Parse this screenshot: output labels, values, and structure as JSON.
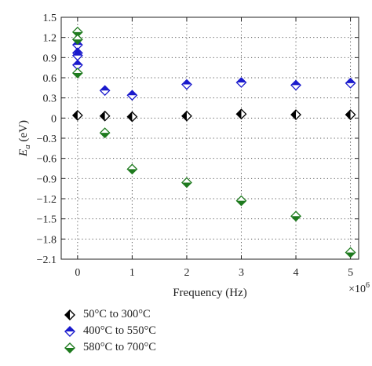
{
  "chart_data": {
    "type": "scatter",
    "title": "",
    "xlabel": "Frequency (Hz)",
    "ylabel_main": "E",
    "ylabel_sub": "a",
    "ylabel_unit": " (eV)",
    "x_multiplier_label": "×10",
    "x_multiplier_exp": "6",
    "xlim": [
      -0.3,
      5.15
    ],
    "ylim": [
      -2.1,
      1.5
    ],
    "x_ticks": [
      0,
      1,
      2,
      3,
      4,
      5
    ],
    "x_tick_labels": [
      "0",
      "1",
      "2",
      "3",
      "4",
      "5"
    ],
    "y_ticks": [
      1.5,
      1.2,
      0.9,
      0.6,
      0.3,
      0,
      -0.3,
      -0.6,
      -0.9,
      -1.2,
      -1.5,
      -1.8,
      -2.1
    ],
    "y_tick_labels": [
      "1.5",
      "1.2",
      "0.9",
      "0.6",
      "0.3",
      "0",
      "−0.3",
      "−0.6",
      "−0.9",
      "−1.2",
      "−1.5",
      "−1.8",
      "−2.1"
    ],
    "grid": true,
    "legend_position": "bottom-left",
    "series": [
      {
        "name": "50°C to 300°C",
        "color": "#000000",
        "x": [
          0,
          0.5,
          1,
          2,
          3,
          4,
          5
        ],
        "y": [
          0.04,
          0.03,
          0.02,
          0.03,
          0.06,
          0.05,
          0.05
        ]
      },
      {
        "name": "400°C to 550°C",
        "color": "#1a1acc",
        "x": [
          0,
          0,
          0,
          0,
          0.5,
          1,
          2,
          3,
          4,
          5
        ],
        "y": [
          1.09,
          0.97,
          0.93,
          0.79,
          0.41,
          0.34,
          0.5,
          0.53,
          0.49,
          0.52
        ]
      },
      {
        "name": "580°C to 700°C",
        "color": "#1e7a1e",
        "x": [
          0,
          0,
          0,
          0.5,
          1,
          2,
          3,
          4,
          5
        ],
        "y": [
          1.28,
          1.17,
          0.67,
          -0.22,
          -0.76,
          -0.96,
          -1.23,
          -1.46,
          -2.0
        ]
      }
    ]
  }
}
